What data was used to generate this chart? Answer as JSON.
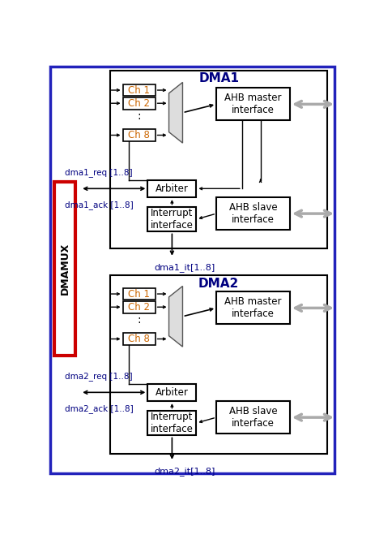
{
  "fig_width": 4.64,
  "fig_height": 6.59,
  "dpi": 100,
  "outer_border_color": "#2222bb",
  "dmamux_box_color": "#cc0000",
  "dmamux_text": "DMAMUX",
  "dma1_title": "DMA1",
  "dma2_title": "DMA2",
  "ch_labels": [
    "Ch 1",
    "Ch 2",
    ":",
    "Ch 8"
  ],
  "arbiter_label": "Arbiter",
  "interrupt_label": "Interrupt\ninterface",
  "ahb_master_label": "AHB master\ninterface",
  "ahb_slave_label": "AHB slave\ninterface",
  "dma1_req_label": "dma1_req [1..8]",
  "dma1_ack_label": "dma1_ack [1..8]",
  "dma1_it_label": "dma1_it[1..8]",
  "dma2_req_label": "dma2_req [1..8]",
  "dma2_ack_label": "dma2_ack [1..8]",
  "dma2_it_label": "dma2_it[1..8]",
  "title_color": "#000080",
  "signal_color": "#000080",
  "ch_text_color": "#cc6600"
}
